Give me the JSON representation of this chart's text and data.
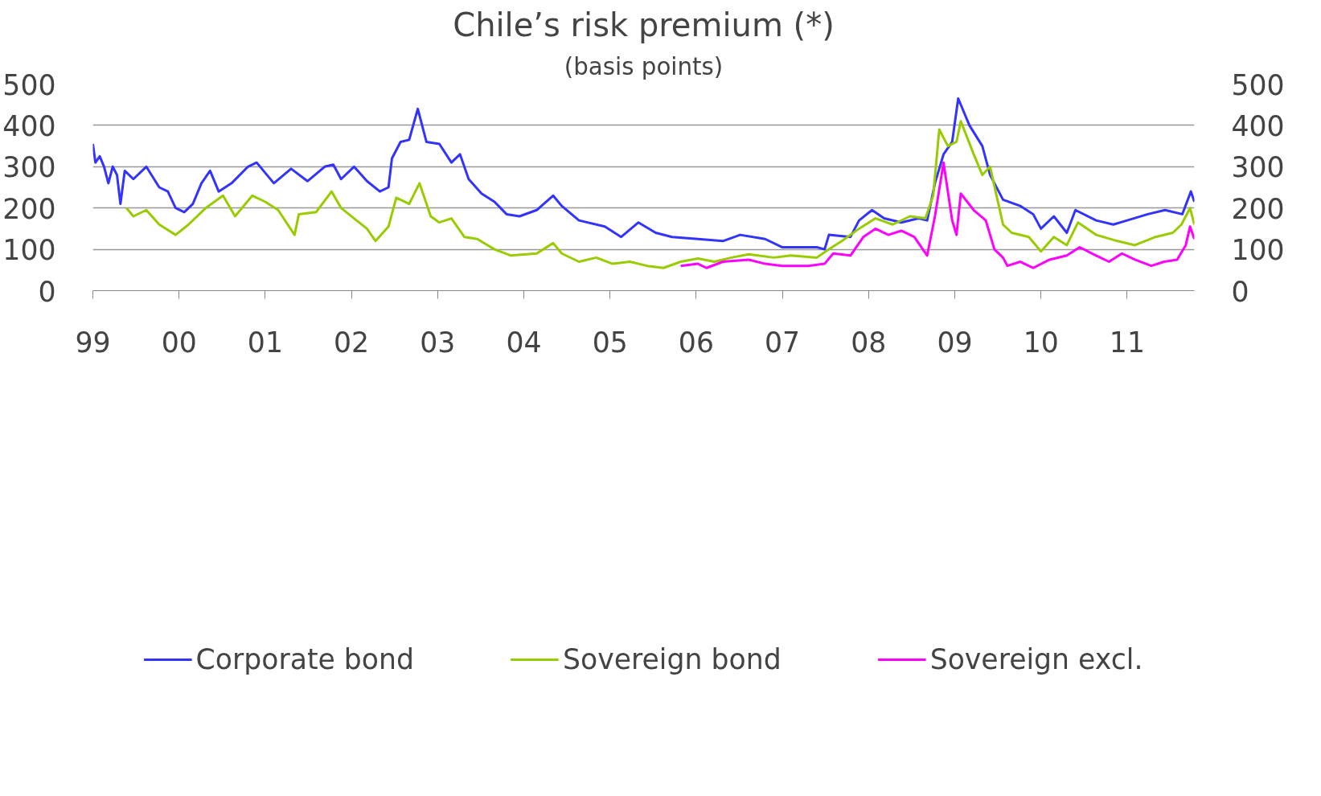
{
  "chart_data": {
    "type": "line",
    "title": "Chile’s risk premium (*)",
    "subtitle": "(basis points)",
    "xlim": [
      1999,
      2011.78
    ],
    "xticks": [
      {
        "value": 1999,
        "label": "99"
      },
      {
        "value": 2000,
        "label": "00"
      },
      {
        "value": 2001,
        "label": "01"
      },
      {
        "value": 2002,
        "label": "02"
      },
      {
        "value": 2003,
        "label": "03"
      },
      {
        "value": 2004,
        "label": "04"
      },
      {
        "value": 2005,
        "label": "05"
      },
      {
        "value": 2006,
        "label": "06"
      },
      {
        "value": 2007,
        "label": "07"
      },
      {
        "value": 2008,
        "label": "08"
      },
      {
        "value": 2009,
        "label": "09"
      },
      {
        "value": 2010,
        "label": "10"
      },
      {
        "value": 2011,
        "label": "11"
      }
    ],
    "ylim": [
      0,
      500
    ],
    "yticks": [
      0,
      100,
      200,
      300,
      400,
      500
    ],
    "y2lim": [
      0,
      500
    ],
    "y2ticks": [
      0,
      100,
      200,
      300,
      400,
      500
    ],
    "grid": "y",
    "legend": "bottom",
    "marker": "none",
    "line_style": "solid",
    "series": [
      {
        "name": "Corporate bond",
        "color": "#3333ff",
        "x": [
          1999.0,
          1999.03,
          1999.08,
          1999.13,
          1999.18,
          1999.23,
          1999.28,
          1999.32,
          1999.37,
          1999.47,
          1999.62,
          1999.77,
          1999.87,
          1999.96,
          2000.06,
          2000.16,
          2000.26,
          2000.36,
          2000.46,
          2000.61,
          2000.8,
          2000.9,
          2001.1,
          2001.3,
          2001.49,
          2001.69,
          2001.79,
          2001.88,
          2002.03,
          2002.18,
          2002.33,
          2002.43,
          2002.47,
          2002.57,
          2002.67,
          2002.77,
          2002.87,
          2003.02,
          2003.16,
          2003.26,
          2003.36,
          2003.51,
          2003.66,
          2003.8,
          2003.95,
          2004.15,
          2004.34,
          2004.44,
          2004.64,
          2004.94,
          2005.13,
          2005.33,
          2005.53,
          2005.72,
          2006.02,
          2006.31,
          2006.51,
          2006.8,
          2007.0,
          2007.2,
          2007.4,
          2007.49,
          2007.54,
          2007.79,
          2007.89,
          2008.04,
          2008.18,
          2008.38,
          2008.58,
          2008.68,
          2008.77,
          2008.87,
          2008.97,
          2009.04,
          2009.17,
          2009.32,
          2009.41,
          2009.56,
          2009.76,
          2009.91,
          2010.0,
          2010.15,
          2010.3,
          2010.4,
          2010.64,
          2010.84,
          2011.0,
          2011.24,
          2011.44,
          2011.64,
          2011.74,
          2011.78
        ],
        "values": [
          355,
          310,
          325,
          300,
          260,
          300,
          280,
          210,
          290,
          270,
          300,
          250,
          240,
          200,
          190,
          210,
          260,
          290,
          240,
          260,
          300,
          310,
          260,
          295,
          265,
          300,
          305,
          270,
          300,
          265,
          240,
          250,
          320,
          360,
          365,
          440,
          360,
          355,
          310,
          330,
          270,
          235,
          215,
          185,
          180,
          195,
          230,
          205,
          170,
          155,
          130,
          165,
          140,
          130,
          125,
          120,
          135,
          125,
          105,
          105,
          105,
          100,
          135,
          130,
          170,
          195,
          175,
          165,
          175,
          170,
          260,
          330,
          360,
          465,
          400,
          350,
          280,
          220,
          205,
          185,
          150,
          180,
          140,
          195,
          170,
          160,
          170,
          185,
          195,
          185,
          240,
          215
        ]
      },
      {
        "name": "Sovereign bond",
        "color": "#99cc00",
        "x": [
          1999.39,
          1999.47,
          1999.62,
          1999.77,
          1999.96,
          2000.11,
          2000.31,
          2000.51,
          2000.65,
          2000.85,
          2001.0,
          2001.15,
          2001.34,
          2001.39,
          2001.59,
          2001.77,
          2001.88,
          2002.03,
          2002.18,
          2002.28,
          2002.43,
          2002.52,
          2002.67,
          2002.79,
          2002.92,
          2003.02,
          2003.16,
          2003.31,
          2003.46,
          2003.66,
          2003.85,
          2004.15,
          2004.34,
          2004.44,
          2004.64,
          2004.84,
          2005.03,
          2005.23,
          2005.43,
          2005.62,
          2005.82,
          2006.02,
          2006.21,
          2006.41,
          2006.61,
          2006.9,
          2007.1,
          2007.4,
          2007.54,
          2007.69,
          2007.89,
          2008.08,
          2008.28,
          2008.48,
          2008.66,
          2008.75,
          2008.82,
          2008.92,
          2009.02,
          2009.07,
          2009.22,
          2009.32,
          2009.41,
          2009.56,
          2009.66,
          2009.86,
          2010.0,
          2010.15,
          2010.3,
          2010.43,
          2010.64,
          2010.89,
          2011.09,
          2011.33,
          2011.53,
          2011.63,
          2011.73,
          2011.78
        ],
        "values": [
          200,
          180,
          195,
          160,
          135,
          160,
          200,
          230,
          180,
          230,
          215,
          195,
          135,
          185,
          190,
          240,
          200,
          175,
          150,
          120,
          155,
          225,
          210,
          260,
          180,
          165,
          175,
          130,
          125,
          100,
          85,
          90,
          115,
          90,
          70,
          80,
          65,
          70,
          60,
          55,
          70,
          78,
          70,
          80,
          88,
          80,
          85,
          80,
          100,
          120,
          150,
          175,
          160,
          180,
          175,
          230,
          390,
          350,
          360,
          410,
          330,
          280,
          300,
          160,
          140,
          130,
          95,
          130,
          110,
          165,
          135,
          120,
          110,
          130,
          140,
          160,
          200,
          160
        ]
      },
      {
        "name": "Sovereign excl.",
        "color": "#ff00ff",
        "x": [
          2005.82,
          2006.02,
          2006.12,
          2006.31,
          2006.61,
          2006.8,
          2007.0,
          2007.3,
          2007.49,
          2007.59,
          2007.79,
          2007.94,
          2008.08,
          2008.23,
          2008.38,
          2008.53,
          2008.68,
          2008.77,
          2008.87,
          2008.97,
          2009.02,
          2009.07,
          2009.22,
          2009.36,
          2009.46,
          2009.56,
          2009.61,
          2009.76,
          2009.91,
          2010.1,
          2010.3,
          2010.45,
          2010.64,
          2010.79,
          2010.94,
          2011.09,
          2011.28,
          2011.43,
          2011.58,
          2011.68,
          2011.73,
          2011.78
        ],
        "values": [
          60,
          65,
          55,
          70,
          75,
          65,
          60,
          60,
          65,
          90,
          85,
          130,
          150,
          135,
          145,
          130,
          85,
          180,
          310,
          170,
          135,
          235,
          195,
          170,
          100,
          80,
          60,
          70,
          55,
          75,
          85,
          105,
          85,
          70,
          90,
          75,
          60,
          70,
          75,
          110,
          155,
          125
        ]
      }
    ]
  }
}
